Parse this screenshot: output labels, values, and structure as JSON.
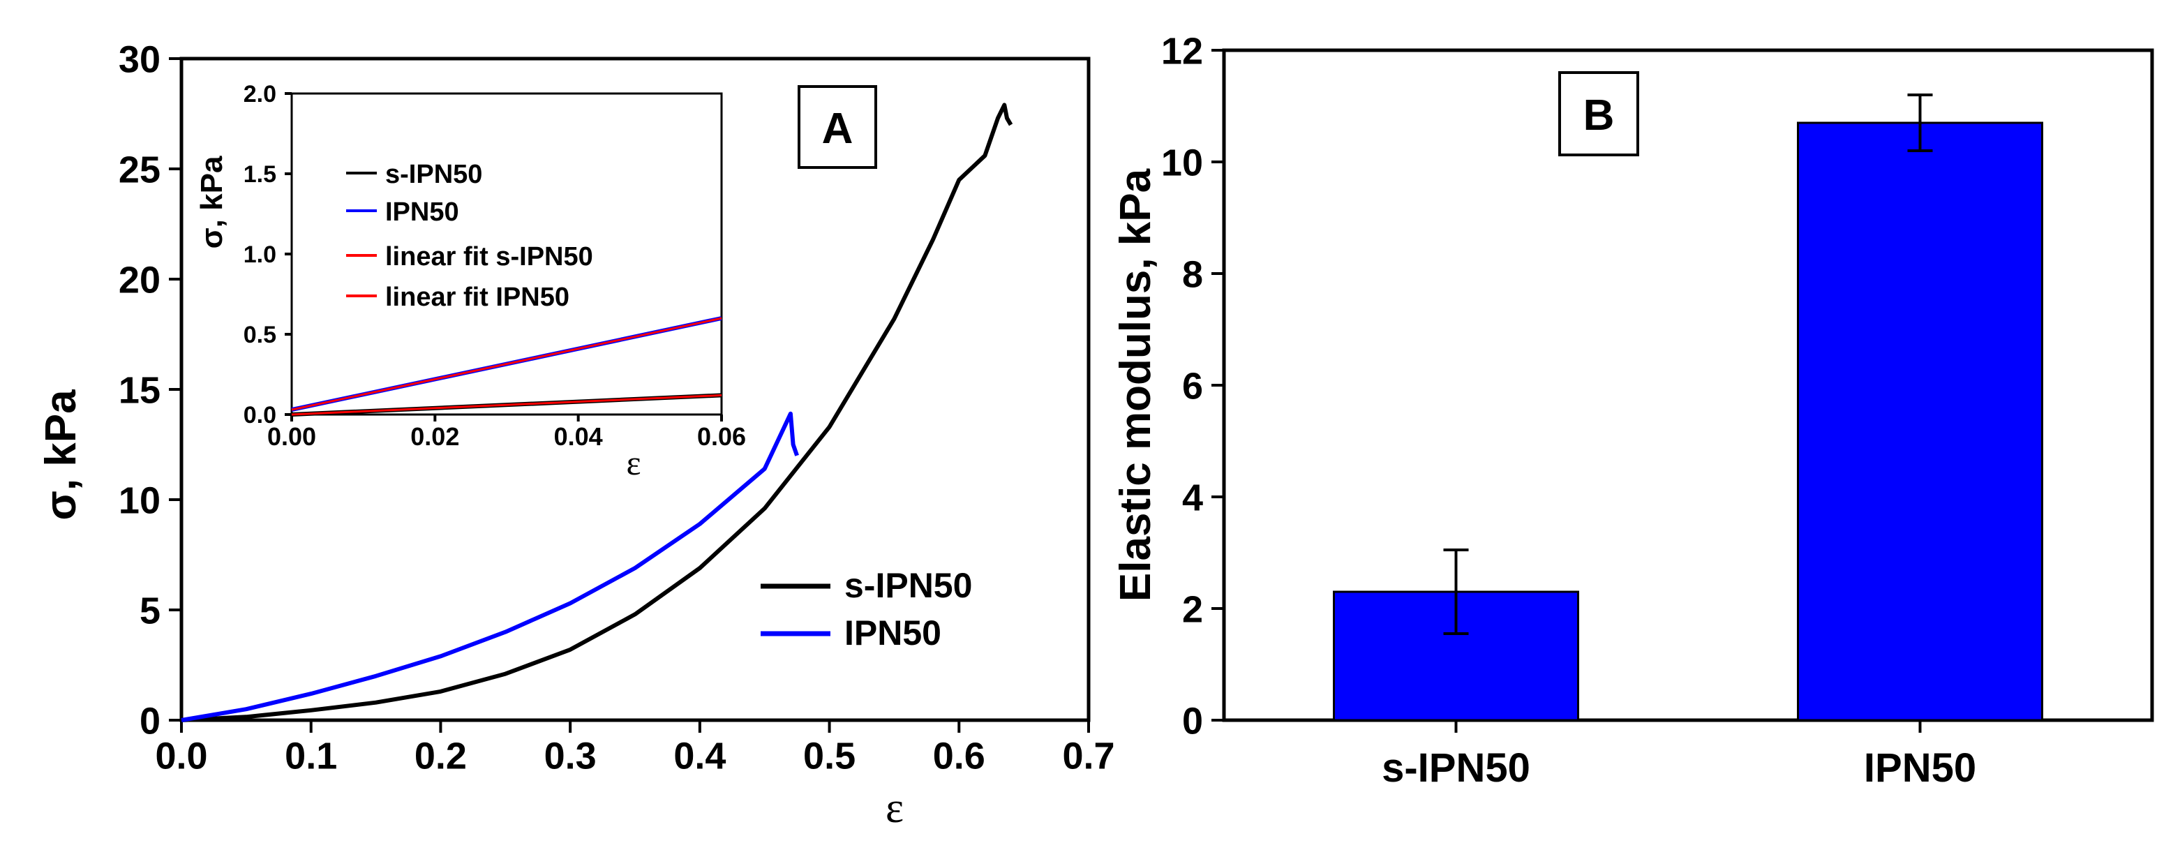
{
  "chart_data": [
    {
      "type": "line",
      "panel_label": "A",
      "xlabel": "ε",
      "ylabel": "σ, kPa",
      "xlim": [
        0.0,
        0.7
      ],
      "ylim": [
        0,
        30
      ],
      "xticks": [
        "0.0",
        "0.1",
        "0.2",
        "0.3",
        "0.4",
        "0.5",
        "0.6",
        "0.7"
      ],
      "yticks": [
        "0",
        "5",
        "10",
        "15",
        "20",
        "25",
        "30"
      ],
      "legend_position": "bottom-right",
      "series": [
        {
          "name": "s-IPN50",
          "color": "#000000",
          "x": [
            0.0,
            0.05,
            0.1,
            0.15,
            0.2,
            0.25,
            0.3,
            0.35,
            0.4,
            0.45,
            0.5,
            0.55,
            0.58,
            0.6,
            0.62,
            0.63,
            0.635,
            0.637,
            0.64
          ],
          "y": [
            0.0,
            0.15,
            0.45,
            0.8,
            1.3,
            2.1,
            3.2,
            4.8,
            6.9,
            9.6,
            13.3,
            18.2,
            21.8,
            24.5,
            25.6,
            27.3,
            27.9,
            27.3,
            27.0
          ]
        },
        {
          "name": "IPN50",
          "color": "#0000ff",
          "x": [
            0.0,
            0.05,
            0.1,
            0.15,
            0.2,
            0.25,
            0.3,
            0.35,
            0.4,
            0.45,
            0.47,
            0.472,
            0.475
          ],
          "y": [
            0.0,
            0.5,
            1.2,
            2.0,
            2.9,
            4.0,
            5.3,
            6.9,
            8.9,
            11.4,
            13.9,
            12.5,
            12.0
          ]
        }
      ]
    },
    {
      "type": "line",
      "inset": true,
      "xlabel": "ε",
      "ylabel": "σ, kPa",
      "xlim": [
        0.0,
        0.06
      ],
      "ylim": [
        0.0,
        2.0
      ],
      "xticks": [
        "0.00",
        "0.02",
        "0.04",
        "0.06"
      ],
      "yticks": [
        "0.0",
        "0.5",
        "1.0",
        "1.5",
        "2.0"
      ],
      "legend_position": "top-left",
      "series": [
        {
          "name": "s-IPN50",
          "color": "#000000",
          "x": [
            0.0,
            0.06
          ],
          "y": [
            0.0,
            0.12
          ]
        },
        {
          "name": "IPN50",
          "color": "#0000ff",
          "x": [
            0.0,
            0.06
          ],
          "y": [
            0.03,
            0.6
          ]
        },
        {
          "name": "linear fit s-IPN50",
          "color": "#ff0000",
          "x": [
            0.0,
            0.06
          ],
          "y": [
            0.0,
            0.12
          ]
        },
        {
          "name": "linear fit IPN50",
          "color": "#ff0000",
          "x": [
            0.0,
            0.06
          ],
          "y": [
            0.03,
            0.6
          ]
        }
      ]
    },
    {
      "type": "bar",
      "panel_label": "B",
      "xlabel": "",
      "ylabel": "Elastic modulus, kPa",
      "categories": [
        "s-IPN50",
        "IPN50"
      ],
      "values": [
        2.3,
        10.7
      ],
      "errors": [
        0.75,
        0.5
      ],
      "color": "#0000ff",
      "ylim": [
        0,
        12
      ],
      "yticks": [
        "0",
        "2",
        "4",
        "6",
        "8",
        "10",
        "12"
      ]
    }
  ]
}
